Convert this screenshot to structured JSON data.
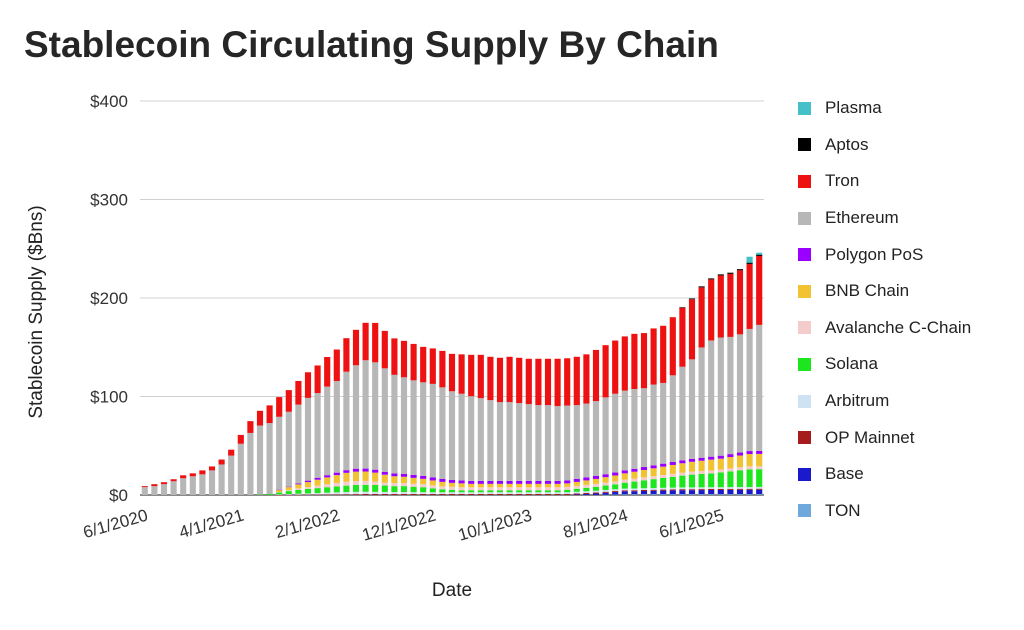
{
  "chart_data": {
    "type": "bar",
    "stacked": true,
    "title": "Stablecoin Circulating Supply By Chain",
    "xlabel": "Date",
    "ylabel": "Stablecoin Supply ($Bns)",
    "ylim": [
      0,
      400
    ],
    "yticks": [
      0,
      100,
      200,
      300,
      400
    ],
    "ytick_labels": [
      "$0",
      "$100",
      "$200",
      "$300",
      "$400"
    ],
    "xtick_labels": [
      "6/1/2020",
      "4/1/2021",
      "2/1/2022",
      "12/1/2022",
      "10/1/2023",
      "8/1/2024",
      "6/1/2025"
    ],
    "xtick_indices": [
      0,
      10,
      20,
      30,
      40,
      50,
      60
    ],
    "grid": true,
    "legend_position": "right",
    "categories_note": "Monthly from 2020-06 to 2025-10",
    "series": [
      {
        "name": "TON",
        "color": "#6fa8dc",
        "values": [
          0,
          0,
          0,
          0,
          0,
          0,
          0,
          0,
          0,
          0,
          0,
          0,
          0,
          0,
          0,
          0,
          0,
          0,
          0,
          0,
          0,
          0,
          0,
          0,
          0,
          0,
          0,
          0,
          0,
          0,
          0,
          0,
          0,
          0,
          0,
          0,
          0,
          0,
          0,
          0,
          0,
          0,
          0,
          0,
          0,
          0,
          0,
          0,
          0.3,
          0.5,
          0.7,
          0.8,
          0.9,
          0.9,
          0.9,
          0.9,
          0.9,
          0.9,
          0.9,
          0.9,
          0.9,
          0.9,
          0.9,
          0.9,
          0.9
        ]
      },
      {
        "name": "Base",
        "color": "#1a1acc",
        "values": [
          0,
          0,
          0,
          0,
          0,
          0,
          0,
          0,
          0,
          0,
          0,
          0,
          0,
          0,
          0,
          0,
          0,
          0,
          0,
          0,
          0,
          0,
          0,
          0,
          0,
          0,
          0,
          0,
          0,
          0,
          0,
          0,
          0,
          0,
          0,
          0,
          0,
          0,
          0,
          0,
          0,
          0,
          0,
          0,
          0,
          0.5,
          1,
          1.5,
          2,
          2.5,
          3,
          3,
          3.2,
          3.4,
          3.6,
          3.8,
          4,
          4,
          4.1,
          4.2,
          4.2,
          4.3,
          4.4,
          4.4,
          4.5
        ]
      },
      {
        "name": "OP Mainnet",
        "color": "#a61c1c",
        "values": [
          0,
          0,
          0,
          0,
          0,
          0,
          0,
          0,
          0,
          0,
          0,
          0,
          0,
          0,
          0.1,
          0.2,
          0.3,
          0.4,
          0.5,
          0.6,
          0.7,
          0.8,
          0.9,
          1,
          1,
          1,
          1,
          1,
          1,
          1,
          1,
          1,
          1,
          1,
          1,
          1,
          1,
          1,
          1,
          1,
          1,
          1,
          1,
          1,
          1,
          1,
          1,
          1,
          1,
          1,
          1,
          1,
          1,
          1,
          1,
          1,
          1,
          1,
          1,
          1,
          1,
          1,
          1,
          1,
          1
        ]
      },
      {
        "name": "Arbitrum",
        "color": "#cfe2f3",
        "values": [
          0,
          0,
          0,
          0,
          0,
          0,
          0,
          0,
          0,
          0,
          0,
          0,
          0,
          0,
          0.5,
          0.8,
          1,
          1.2,
          1.5,
          1.8,
          2,
          2.2,
          2.3,
          2.3,
          2.2,
          2.1,
          2,
          2,
          1.9,
          1.9,
          1.8,
          1.8,
          1.8,
          1.8,
          1.8,
          1.8,
          1.8,
          1.8,
          1.8,
          1.8,
          1.8,
          1.8,
          1.8,
          1.8,
          1.8,
          1.8,
          1.8,
          1.8,
          1.8,
          1.8,
          1.8,
          1.8,
          1.8,
          1.8,
          1.8,
          1.8,
          1.8,
          1.8,
          1.8,
          1.8,
          1.8,
          1.8,
          1.8,
          1.8,
          1.8
        ]
      },
      {
        "name": "Solana",
        "color": "#1ee61e",
        "values": [
          0,
          0,
          0,
          0,
          0,
          0,
          0,
          0,
          0,
          0,
          0,
          0,
          0.5,
          1,
          2,
          3,
          4,
          4.5,
          5,
          5.5,
          6,
          6.5,
          7,
          7,
          7,
          6.5,
          6,
          6,
          5.5,
          5,
          4,
          3,
          2.5,
          2,
          2,
          2,
          2,
          2,
          2,
          2,
          2,
          2,
          2,
          2,
          2.5,
          3,
          3.5,
          4,
          4.5,
          5,
          6,
          7,
          8,
          9,
          10,
          11,
          12,
          13,
          13.5,
          14,
          15,
          16,
          17,
          18,
          18
        ]
      },
      {
        "name": "Avalanche C-Chain",
        "color": "#f4cccc",
        "values": [
          0,
          0,
          0,
          0,
          0,
          0,
          0,
          0,
          0,
          0,
          0,
          0,
          0,
          0,
          0.5,
          1,
          1.5,
          2,
          2.5,
          3,
          3.5,
          4,
          4,
          4,
          3.5,
          3,
          3,
          3,
          3,
          3,
          3,
          3,
          3,
          3,
          3,
          3,
          3,
          3,
          3,
          3,
          3,
          3,
          3,
          3,
          3,
          3,
          3,
          3,
          3,
          3,
          3,
          3,
          3,
          3,
          3,
          3,
          3,
          3,
          3,
          3,
          3,
          3,
          3,
          3,
          3
        ]
      },
      {
        "name": "BNB Chain",
        "color": "#f1c232",
        "values": [
          0,
          0,
          0,
          0,
          0,
          0,
          0,
          0,
          0,
          0,
          0,
          0,
          0,
          0,
          2,
          3,
          4,
          5,
          6,
          7,
          8,
          9,
          9.5,
          9.5,
          9,
          8,
          7,
          6.5,
          6,
          5.5,
          5,
          4.5,
          4,
          4,
          3.5,
          3.5,
          3.5,
          3.5,
          3.5,
          3.5,
          3.5,
          3.5,
          3.5,
          3.5,
          3.5,
          4,
          4.5,
          5,
          5.5,
          6,
          6.5,
          7,
          7.5,
          8,
          8.5,
          9,
          9.5,
          10,
          10.5,
          11,
          11,
          11.5,
          12,
          12.5,
          12.5
        ]
      },
      {
        "name": "Polygon PoS",
        "color": "#9900ff",
        "values": [
          0,
          0,
          0,
          0,
          0,
          0,
          0,
          0,
          0,
          0,
          0,
          0,
          0,
          0,
          0.3,
          0.5,
          1,
          1.5,
          2,
          2.2,
          2.5,
          2.7,
          3,
          3,
          3,
          3,
          3,
          3,
          3,
          3,
          3,
          3,
          3,
          3,
          3,
          3,
          3,
          3,
          3,
          3,
          3,
          3,
          3,
          3,
          3,
          3,
          3,
          3,
          3,
          3,
          3,
          3,
          3,
          3,
          3,
          3,
          3,
          3,
          3,
          3,
          3,
          3,
          3,
          3,
          3
        ]
      },
      {
        "name": "Ethereum",
        "color": "#b7b7b7",
        "values": [
          8,
          9,
          11,
          14,
          17,
          19,
          21,
          25,
          31,
          40,
          52,
          63,
          70,
          72,
          74,
          76,
          80,
          84,
          86,
          90,
          93,
          100,
          105,
          110,
          109,
          105,
          100,
          98,
          96,
          95,
          95,
          93,
          90,
          88,
          86,
          84,
          82,
          80,
          80,
          79,
          78,
          77,
          77,
          76,
          76,
          75,
          75,
          76,
          78,
          80,
          81,
          81,
          80,
          82,
          82,
          88,
          95,
          101,
          112,
          118,
          120,
          119,
          120,
          124,
          128
        ]
      },
      {
        "name": "Tron",
        "color": "#ee1111",
        "values": [
          1,
          2,
          2,
          2,
          3,
          3,
          4,
          4,
          5,
          6,
          9,
          12,
          15,
          18,
          20,
          22,
          24,
          26,
          28,
          30,
          32,
          34,
          36,
          38,
          40,
          38,
          37,
          37,
          37,
          36,
          36,
          37,
          38,
          40,
          42,
          44,
          44,
          45,
          46,
          46,
          46,
          47,
          47,
          48,
          48,
          49,
          50,
          52,
          53,
          54,
          55,
          56,
          56,
          57,
          58,
          59,
          60,
          61,
          61,
          62,
          63,
          64,
          65,
          66,
          70
        ]
      },
      {
        "name": "Aptos",
        "color": "#000000",
        "values": [
          0,
          0,
          0,
          0,
          0,
          0,
          0,
          0,
          0,
          0,
          0,
          0,
          0,
          0,
          0,
          0,
          0,
          0,
          0,
          0,
          0,
          0,
          0,
          0,
          0,
          0,
          0,
          0,
          0,
          0,
          0,
          0,
          0,
          0,
          0,
          0,
          0,
          0,
          0,
          0,
          0,
          0,
          0,
          0,
          0,
          0,
          0,
          0,
          0,
          0,
          0,
          0,
          0,
          0,
          0,
          0,
          0.5,
          0.8,
          1,
          1,
          1.1,
          1.2,
          1.2,
          1.3,
          1.3
        ]
      },
      {
        "name": "Plasma",
        "color": "#45c0c8",
        "values": [
          0,
          0,
          0,
          0,
          0,
          0,
          0,
          0,
          0,
          0,
          0,
          0,
          0,
          0,
          0,
          0,
          0,
          0,
          0,
          0,
          0,
          0,
          0,
          0,
          0,
          0,
          0,
          0,
          0,
          0,
          0,
          0,
          0,
          0,
          0,
          0,
          0,
          0,
          0,
          0,
          0,
          0,
          0,
          0,
          0,
          0,
          0,
          0,
          0,
          0,
          0,
          0,
          0,
          0,
          0,
          0,
          0,
          0,
          0,
          0,
          0,
          0,
          0,
          6,
          2
        ]
      }
    ]
  }
}
